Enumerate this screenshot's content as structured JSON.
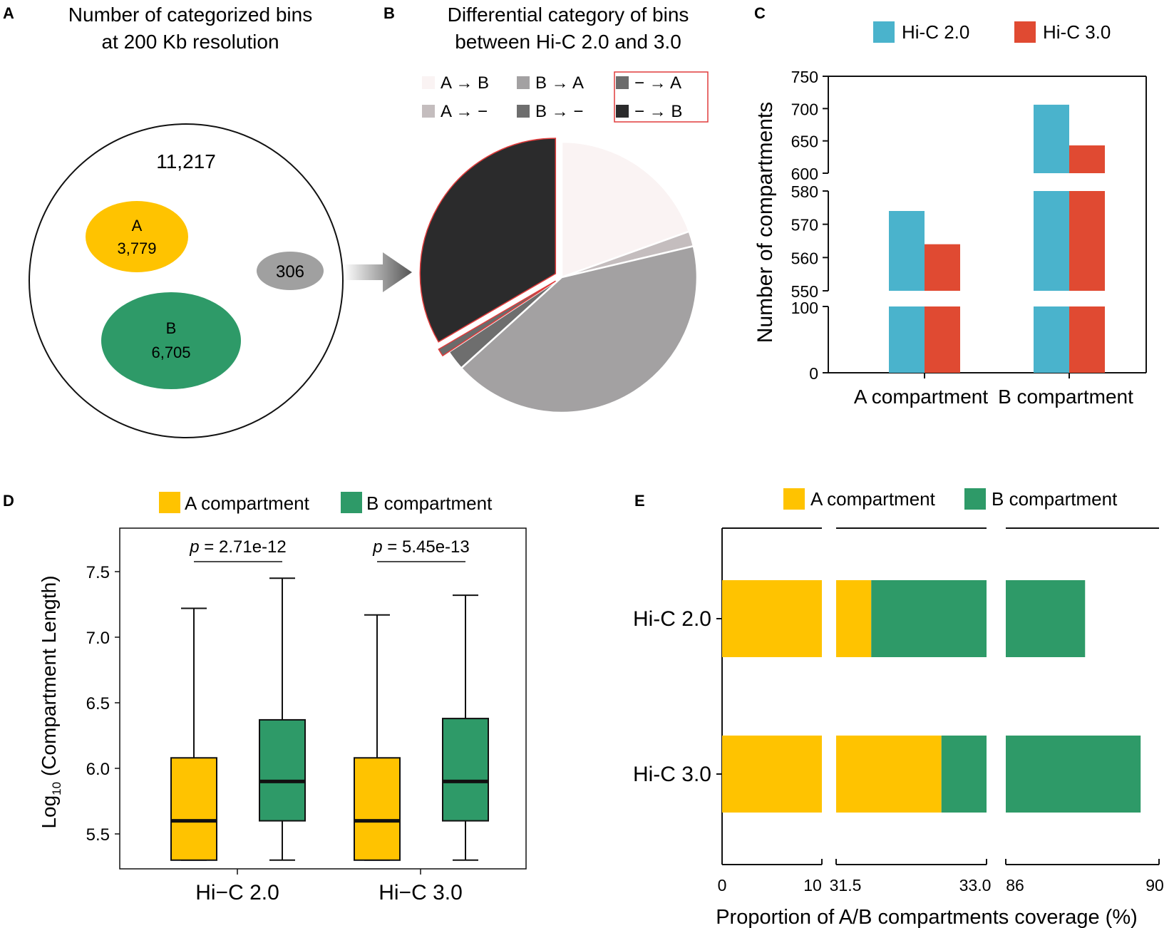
{
  "panels": {
    "A": {
      "letter": "A",
      "title_line1": "Number of categorized bins",
      "title_line2": "at 200 Kb resolution",
      "total": "11,217",
      "a_label": "A",
      "a_value": "3,779",
      "b_label": "B",
      "b_value": "6,705",
      "other_value": "306",
      "colors": {
        "A": "#FFC300",
        "B": "#2E9A68",
        "other": "#A0A0A0"
      }
    },
    "B": {
      "letter": "B",
      "title_line1": "Differential category of bins",
      "title_line2": "between Hi-C 2.0 and 3.0"
    },
    "C": {
      "letter": "C"
    },
    "D": {
      "letter": "D"
    },
    "E": {
      "letter": "E"
    }
  },
  "chart_data": [
    {
      "id": "B",
      "type": "pie",
      "title": "Differential category of bins between Hi-C 2.0 and 3.0",
      "legend": [
        {
          "label": "A → B",
          "color": "#FAF3F3"
        },
        {
          "label": "B → A",
          "color": "#A3A1A2"
        },
        {
          "label": "− → A",
          "color": "#6B6B6B"
        },
        {
          "label": "A → −",
          "color": "#C4BDBE"
        },
        {
          "label": "B → −",
          "color": "#6E6E6E"
        },
        {
          "label": "− → B",
          "color": "#2B2B2C"
        }
      ],
      "highlighted_legend": [
        "− → A",
        "− → B"
      ],
      "slices": [
        {
          "label": "A → B",
          "value": 19.5,
          "color": "#FAF3F3"
        },
        {
          "label": "A → −",
          "value": 1.8,
          "color": "#C4BDBE"
        },
        {
          "label": "B → A",
          "value": 42.0,
          "color": "#A3A1A2"
        },
        {
          "label": "B → −",
          "value": 2.4,
          "color": "#6E6E6E"
        },
        {
          "label": "− → A",
          "value": 0.9,
          "color": "#6B6B6B"
        },
        {
          "label": "− → B",
          "value": 33.4,
          "color": "#2B2B2C"
        }
      ]
    },
    {
      "id": "C",
      "type": "bar",
      "ylabel": "Number of compartments",
      "categories": [
        "A compartment",
        "B compartment"
      ],
      "series": [
        {
          "name": "Hi-C 2.0",
          "color": "#4AB3CC",
          "values": [
            574,
            706
          ]
        },
        {
          "name": "Hi-C 3.0",
          "color": "#E04A32",
          "values": [
            564,
            643
          ]
        }
      ],
      "broken_axis_segments": [
        {
          "range": [
            0,
            100
          ],
          "ticks": [
            "0",
            "100"
          ]
        },
        {
          "range": [
            550,
            580
          ],
          "ticks": [
            "550",
            "560",
            "570",
            "580"
          ]
        },
        {
          "range": [
            600,
            750
          ],
          "ticks": [
            "600",
            "650",
            "700",
            "750"
          ]
        }
      ]
    },
    {
      "id": "D",
      "type": "box",
      "ylabel_prefix": "Log",
      "ylabel_sub": "10",
      "ylabel_rest": " (Compartment Length)",
      "yticks": [
        "5.5",
        "6.0",
        "6.5",
        "7.0",
        "7.5"
      ],
      "ylim": [
        5.22,
        7.75
      ],
      "legend": [
        {
          "label": "A compartment",
          "color": "#FFC300"
        },
        {
          "label": "B compartment",
          "color": "#2E9A68"
        }
      ],
      "groups": [
        {
          "name": "Hi−C 2.0",
          "p_prefix": "p",
          "p_rest": " = 2.71e-12",
          "boxes": [
            {
              "series": "A compartment",
              "min": 5.3,
              "q1": 5.3,
              "median": 5.6,
              "q3": 6.08,
              "max": 7.22
            },
            {
              "series": "B compartment",
              "min": 5.3,
              "q1": 5.6,
              "median": 5.9,
              "q3": 6.37,
              "max": 7.45
            }
          ]
        },
        {
          "name": "Hi−C 3.0",
          "p_prefix": "p",
          "p_rest": " = 5.45e-13",
          "boxes": [
            {
              "series": "A compartment",
              "min": 5.3,
              "q1": 5.3,
              "median": 5.6,
              "q3": 6.08,
              "max": 7.17
            },
            {
              "series": "B compartment",
              "min": 5.3,
              "q1": 5.6,
              "median": 5.9,
              "q3": 6.38,
              "max": 7.32
            }
          ]
        }
      ]
    },
    {
      "id": "E",
      "type": "bar",
      "orientation": "horizontal",
      "stacked": true,
      "xlabel": "Proportion of A/B compartments coverage (%)",
      "legend": [
        {
          "label": "A compartment",
          "color": "#FFC300"
        },
        {
          "label": "B compartment",
          "color": "#2E9A68"
        }
      ],
      "categories": [
        "Hi-C 2.0",
        "Hi-C 3.0"
      ],
      "series": [
        {
          "name": "A compartment",
          "values": [
            31.85,
            32.55
          ]
        },
        {
          "name": "B compartment",
          "values": [
            56.22,
            56.97
          ]
        }
      ],
      "broken_axis_segments": [
        {
          "range": [
            0,
            10
          ],
          "ticks": [
            "0",
            "10"
          ]
        },
        {
          "range": [
            31.5,
            33.0
          ],
          "ticks": [
            "31.5",
            "33.0"
          ]
        },
        {
          "range": [
            86,
            90
          ],
          "ticks": [
            "86",
            "90"
          ]
        }
      ]
    }
  ]
}
